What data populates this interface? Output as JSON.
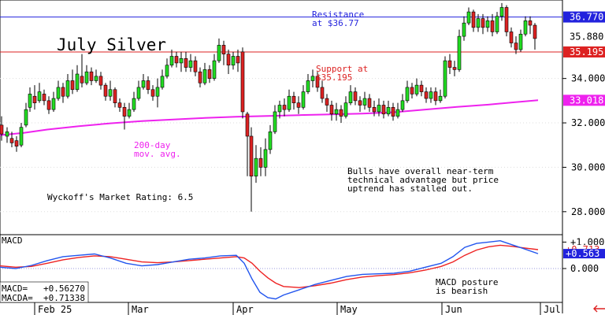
{
  "chart_data": {
    "type": "candlestick",
    "title": "July Silver",
    "main_panel": {
      "ylim": [
        27.0,
        37.5
      ],
      "y_ticks": [
        "28.000",
        "30.000",
        "32.000",
        "34.000"
      ],
      "annotations": {
        "resistance": "Resistance\nat $36.77",
        "support": "Support at\n$35.195",
        "ma_label": "200-day\nmov. avg.",
        "rating": "Wyckoff's Market Rating: 6.5",
        "note": "Bulls have overall near-term\ntechnical advantage but price\nuptrend has stalled out."
      },
      "price_tags": [
        {
          "value": "36.770",
          "y": 36.77,
          "color": "#2222dd",
          "text_color": "#ffffff"
        },
        {
          "value": "35.880",
          "y": 35.88,
          "color": "#ffffff",
          "text_color": "#000000"
        },
        {
          "value": "35.195",
          "y": 35.195,
          "color": "#dd2222",
          "text_color": "#ffffff"
        },
        {
          "value": "33.018",
          "y": 33.018,
          "color": "#ee22ee",
          "text_color": "#ffffff"
        }
      ],
      "resistance_level": 36.77,
      "support_level": 35.195,
      "moving_average_200": [
        [
          0,
          31.45
        ],
        [
          30,
          31.55
        ],
        [
          60,
          31.7
        ],
        [
          100,
          31.85
        ],
        [
          140,
          31.98
        ],
        [
          180,
          32.08
        ],
        [
          220,
          32.15
        ],
        [
          260,
          32.22
        ],
        [
          300,
          32.28
        ],
        [
          340,
          32.31
        ],
        [
          380,
          32.35
        ],
        [
          420,
          32.38
        ],
        [
          460,
          32.42
        ],
        [
          500,
          32.48
        ],
        [
          540,
          32.6
        ],
        [
          580,
          32.72
        ],
        [
          620,
          32.82
        ],
        [
          650,
          32.92
        ],
        [
          683,
          33.018
        ]
      ],
      "candles": [
        [
          2,
          31.9,
          31.5,
          32.3,
          31.2
        ],
        [
          9,
          31.4,
          31.6,
          31.8,
          31.1
        ],
        [
          15,
          31.3,
          31.1,
          31.6,
          30.9
        ],
        [
          21,
          31.2,
          30.95,
          31.4,
          30.7
        ],
        [
          27,
          31.0,
          31.8,
          32.0,
          30.9
        ],
        [
          33,
          31.9,
          32.6,
          32.9,
          31.8
        ],
        [
          38,
          32.7,
          33.3,
          33.6,
          32.5
        ],
        [
          44,
          33.2,
          32.9,
          33.7,
          32.6
        ],
        [
          50,
          33.0,
          33.4,
          33.8,
          32.9
        ],
        [
          56,
          33.3,
          33.0,
          33.5,
          32.8
        ],
        [
          62,
          33.0,
          32.6,
          33.2,
          32.4
        ],
        [
          68,
          32.6,
          33.1,
          33.4,
          32.5
        ],
        [
          74,
          33.1,
          33.6,
          33.9,
          33.0
        ],
        [
          80,
          33.6,
          33.2,
          33.8,
          32.9
        ],
        [
          86,
          33.2,
          33.9,
          34.2,
          33.1
        ],
        [
          92,
          33.9,
          33.5,
          34.4,
          33.3
        ],
        [
          98,
          33.5,
          34.2,
          34.6,
          33.4
        ],
        [
          104,
          34.1,
          33.8,
          35.1,
          33.6
        ],
        [
          110,
          33.8,
          34.3,
          34.6,
          33.7
        ],
        [
          116,
          34.3,
          33.9,
          34.5,
          33.7
        ],
        [
          122,
          33.9,
          34.1,
          34.4,
          33.8
        ],
        [
          128,
          34.1,
          33.7,
          34.3,
          33.5
        ],
        [
          134,
          33.7,
          33.2,
          33.8,
          33.0
        ],
        [
          140,
          33.2,
          33.5,
          33.9,
          33.0
        ],
        [
          146,
          33.5,
          32.9,
          33.6,
          32.7
        ],
        [
          152,
          32.9,
          32.7,
          33.1,
          32.5
        ],
        [
          158,
          32.7,
          32.3,
          32.9,
          31.7
        ],
        [
          164,
          32.3,
          32.6,
          32.9,
          32.2
        ],
        [
          170,
          32.6,
          33.1,
          33.4,
          32.5
        ],
        [
          176,
          33.1,
          33.6,
          33.9,
          33.0
        ],
        [
          182,
          33.6,
          33.9,
          34.2,
          33.5
        ],
        [
          188,
          33.9,
          33.5,
          34.1,
          33.3
        ],
        [
          194,
          33.5,
          33.2,
          33.7,
          33.0
        ],
        [
          200,
          33.2,
          33.6,
          34.0,
          32.7
        ],
        [
          206,
          33.6,
          34.1,
          34.4,
          33.5
        ],
        [
          212,
          34.1,
          34.6,
          34.9,
          34.0
        ],
        [
          218,
          34.6,
          35.0,
          35.3,
          34.5
        ],
        [
          224,
          35.0,
          34.7,
          35.2,
          34.5
        ],
        [
          230,
          34.7,
          34.9,
          35.2,
          34.3
        ],
        [
          236,
          34.9,
          34.5,
          35.2,
          34.3
        ],
        [
          242,
          34.5,
          34.8,
          35.1,
          34.3
        ],
        [
          248,
          34.8,
          34.3,
          35.0,
          34.1
        ],
        [
          254,
          34.3,
          33.8,
          34.5,
          33.6
        ],
        [
          260,
          33.8,
          34.4,
          34.7,
          33.7
        ],
        [
          266,
          34.4,
          34.0,
          34.6,
          33.8
        ],
        [
          272,
          34.0,
          34.8,
          35.1,
          33.9
        ],
        [
          278,
          34.8,
          35.5,
          35.8,
          34.7
        ],
        [
          284,
          35.5,
          35.1,
          35.7,
          34.6
        ],
        [
          290,
          35.1,
          34.6,
          35.3,
          34.2
        ],
        [
          296,
          34.6,
          35.0,
          35.2,
          34.4
        ],
        [
          302,
          35.0,
          34.7,
          35.3,
          34.3
        ],
        [
          308,
          35.2,
          32.5,
          35.4,
          32.2
        ],
        [
          314,
          32.4,
          31.4,
          32.5,
          29.6
        ],
        [
          319,
          31.4,
          29.6,
          31.8,
          28.0
        ],
        [
          325,
          29.6,
          30.4,
          31.0,
          29.3
        ],
        [
          331,
          30.4,
          30.0,
          30.9,
          29.6
        ],
        [
          337,
          30.0,
          30.8,
          31.3,
          29.6
        ],
        [
          343,
          30.8,
          31.6,
          31.9,
          30.6
        ],
        [
          349,
          31.6,
          32.5,
          32.8,
          31.5
        ],
        [
          355,
          32.5,
          32.8,
          33.0,
          32.2
        ],
        [
          361,
          32.8,
          32.6,
          33.1,
          32.3
        ],
        [
          367,
          32.6,
          33.2,
          33.5,
          32.5
        ],
        [
          373,
          33.2,
          32.9,
          33.4,
          32.6
        ],
        [
          379,
          32.9,
          32.7,
          33.2,
          32.4
        ],
        [
          385,
          32.7,
          33.4,
          33.7,
          32.6
        ],
        [
          391,
          33.4,
          33.9,
          34.2,
          33.3
        ],
        [
          397,
          33.9,
          34.1,
          34.4,
          33.6
        ],
        [
          403,
          34.1,
          33.6,
          34.3,
          33.4
        ],
        [
          409,
          33.6,
          33.1,
          33.9,
          32.9
        ],
        [
          415,
          33.1,
          32.8,
          33.3,
          32.5
        ],
        [
          421,
          32.8,
          32.4,
          33.0,
          32.1
        ],
        [
          427,
          32.4,
          32.6,
          32.9,
          32.1
        ],
        [
          433,
          32.6,
          32.3,
          32.8,
          32.0
        ],
        [
          439,
          32.3,
          32.9,
          33.2,
          32.2
        ],
        [
          445,
          32.9,
          33.4,
          33.7,
          32.8
        ],
        [
          451,
          33.4,
          33.0,
          33.6,
          32.8
        ],
        [
          457,
          33.0,
          32.8,
          33.2,
          32.5
        ],
        [
          463,
          32.8,
          33.1,
          33.4,
          32.6
        ],
        [
          469,
          33.1,
          32.7,
          33.3,
          32.5
        ],
        [
          475,
          32.7,
          32.5,
          33.0,
          32.3
        ],
        [
          481,
          32.5,
          32.8,
          33.1,
          32.3
        ],
        [
          487,
          32.8,
          32.4,
          33.0,
          32.2
        ],
        [
          493,
          32.4,
          32.7,
          33.0,
          32.3
        ],
        [
          499,
          32.7,
          32.3,
          32.9,
          32.1
        ],
        [
          505,
          32.3,
          32.6,
          32.9,
          32.2
        ],
        [
          511,
          32.6,
          33.0,
          33.3,
          32.5
        ],
        [
          517,
          33.0,
          33.6,
          33.9,
          32.9
        ],
        [
          523,
          33.6,
          33.3,
          33.8,
          33.1
        ],
        [
          529,
          33.3,
          33.7,
          34.0,
          33.2
        ],
        [
          535,
          33.7,
          33.4,
          33.9,
          33.2
        ],
        [
          541,
          33.4,
          33.1,
          33.6,
          32.9
        ],
        [
          547,
          33.1,
          33.4,
          33.6,
          32.9
        ],
        [
          553,
          33.4,
          33.0,
          33.6,
          32.8
        ],
        [
          559,
          33.0,
          33.2,
          33.5,
          32.9
        ],
        [
          565,
          33.2,
          34.8,
          35.0,
          33.1
        ],
        [
          571,
          34.8,
          34.5,
          35.1,
          34.2
        ],
        [
          577,
          34.5,
          34.4,
          34.8,
          34.1
        ],
        [
          583,
          34.4,
          35.9,
          36.2,
          34.3
        ],
        [
          589,
          35.9,
          36.5,
          36.8,
          35.7
        ],
        [
          595,
          36.5,
          37.0,
          37.2,
          36.4
        ],
        [
          601,
          37.0,
          36.3,
          37.1,
          36.1
        ],
        [
          607,
          36.3,
          36.7,
          36.9,
          36.1
        ],
        [
          613,
          36.7,
          36.3,
          36.9,
          36.0
        ],
        [
          619,
          36.3,
          36.6,
          36.8,
          36.1
        ],
        [
          625,
          36.6,
          36.1,
          36.9,
          35.9
        ],
        [
          631,
          36.1,
          36.8,
          37.0,
          36.0
        ],
        [
          637,
          36.8,
          37.2,
          37.4,
          36.6
        ],
        [
          643,
          37.2,
          36.1,
          37.3,
          35.9
        ],
        [
          649,
          36.1,
          35.6,
          36.3,
          35.4
        ],
        [
          655,
          35.6,
          35.3,
          35.9,
          35.1
        ],
        [
          661,
          35.3,
          36.0,
          36.2,
          35.2
        ],
        [
          667,
          36.0,
          36.6,
          36.8,
          35.9
        ],
        [
          673,
          36.6,
          36.4,
          36.8,
          36.0
        ],
        [
          679,
          36.4,
          35.8,
          36.5,
          35.3
        ]
      ]
    },
    "macd_panel": {
      "label": "MACD",
      "ylim": [
        -1.25,
        1.25
      ],
      "y_ticks": [
        "+1.000",
        "0.000"
      ],
      "tags": [
        {
          "value": "+0.713",
          "y": 0.71338,
          "color": "#ffffff",
          "text_color": "#dd2222"
        },
        {
          "value": "+0.563",
          "y": 0.5627,
          "color": "#2222dd",
          "text_color": "#ffffff"
        }
      ],
      "readout": {
        "macd": "MACD=   +0.56270",
        "macda": "MACDA=  +0.71338"
      },
      "note": "MACD posture\nis bearish",
      "macd_line": [
        [
          0,
          0.05
        ],
        [
          20,
          0.0
        ],
        [
          40,
          0.12
        ],
        [
          60,
          0.3
        ],
        [
          80,
          0.45
        ],
        [
          100,
          0.5
        ],
        [
          120,
          0.55
        ],
        [
          140,
          0.4
        ],
        [
          160,
          0.2
        ],
        [
          180,
          0.1
        ],
        [
          200,
          0.15
        ],
        [
          220,
          0.25
        ],
        [
          240,
          0.35
        ],
        [
          260,
          0.4
        ],
        [
          280,
          0.48
        ],
        [
          300,
          0.5
        ],
        [
          310,
          0.2
        ],
        [
          320,
          -0.4
        ],
        [
          330,
          -0.9
        ],
        [
          340,
          -1.1
        ],
        [
          350,
          -1.15
        ],
        [
          360,
          -1.0
        ],
        [
          380,
          -0.8
        ],
        [
          400,
          -0.6
        ],
        [
          420,
          -0.45
        ],
        [
          440,
          -0.3
        ],
        [
          460,
          -0.22
        ],
        [
          480,
          -0.2
        ],
        [
          500,
          -0.18
        ],
        [
          520,
          -0.1
        ],
        [
          540,
          0.05
        ],
        [
          560,
          0.2
        ],
        [
          575,
          0.45
        ],
        [
          590,
          0.8
        ],
        [
          605,
          0.95
        ],
        [
          620,
          1.0
        ],
        [
          635,
          1.05
        ],
        [
          650,
          0.9
        ],
        [
          665,
          0.75
        ],
        [
          683,
          0.5627
        ]
      ],
      "macda_line": [
        [
          0,
          0.1
        ],
        [
          20,
          0.05
        ],
        [
          40,
          0.08
        ],
        [
          60,
          0.2
        ],
        [
          80,
          0.33
        ],
        [
          100,
          0.42
        ],
        [
          120,
          0.48
        ],
        [
          140,
          0.45
        ],
        [
          160,
          0.35
        ],
        [
          180,
          0.25
        ],
        [
          200,
          0.22
        ],
        [
          220,
          0.25
        ],
        [
          240,
          0.3
        ],
        [
          260,
          0.35
        ],
        [
          280,
          0.4
        ],
        [
          300,
          0.45
        ],
        [
          310,
          0.4
        ],
        [
          320,
          0.2
        ],
        [
          330,
          -0.1
        ],
        [
          340,
          -0.35
        ],
        [
          350,
          -0.55
        ],
        [
          360,
          -0.68
        ],
        [
          380,
          -0.72
        ],
        [
          400,
          -0.65
        ],
        [
          420,
          -0.55
        ],
        [
          440,
          -0.42
        ],
        [
          460,
          -0.32
        ],
        [
          480,
          -0.27
        ],
        [
          500,
          -0.23
        ],
        [
          520,
          -0.16
        ],
        [
          540,
          -0.06
        ],
        [
          560,
          0.08
        ],
        [
          575,
          0.25
        ],
        [
          590,
          0.5
        ],
        [
          605,
          0.7
        ],
        [
          620,
          0.82
        ],
        [
          635,
          0.88
        ],
        [
          650,
          0.84
        ],
        [
          665,
          0.78
        ],
        [
          683,
          0.71338
        ]
      ]
    },
    "x_axis": {
      "labels": [
        {
          "text": "Feb 25",
          "x": 48
        },
        {
          "text": "Mar",
          "x": 167
        },
        {
          "text": "Apr",
          "x": 300
        },
        {
          "text": "May",
          "x": 432
        },
        {
          "text": "Jun",
          "x": 565
        },
        {
          "text": "Jul",
          "x": 690
        }
      ]
    },
    "colors": {
      "up": "#22dd22",
      "down": "#dd2222",
      "ma": "#ee22ee",
      "resistance_line": "#2222dd",
      "support_line": "#dd2222",
      "macd": "#2255ee",
      "macda": "#ee2222",
      "arrow": "#dd2222"
    }
  }
}
